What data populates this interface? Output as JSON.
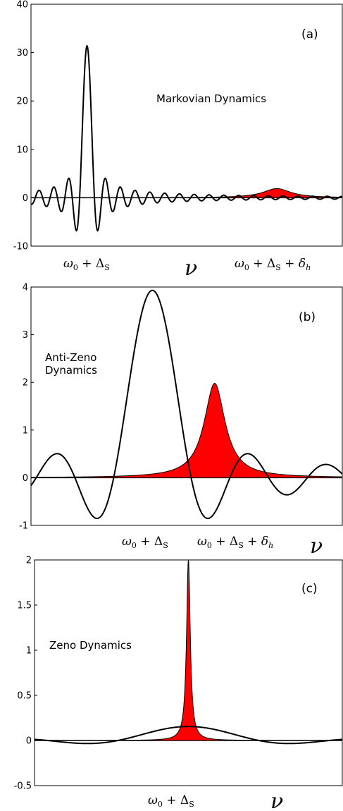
{
  "chart_data": [
    {
      "type": "line",
      "panel_label": "(a)",
      "annotation": "Markovian Dynamics",
      "ylim": [
        -10,
        40
      ],
      "yticks": [
        "-10",
        "0",
        "10",
        "20",
        "30",
        "40"
      ],
      "x_tick_labels": [
        "ω₀ + Δ_S",
        "ω₀ + Δ_S + δ_h"
      ],
      "xlabel": "ν",
      "series": [
        {
          "kind": "sinc",
          "peak": 31.4,
          "first_min": -6.8,
          "center": 0.18
        },
        {
          "kind": "lorentzian",
          "peak": 1.9,
          "center": 0.79,
          "fill": "#ff0000"
        }
      ]
    },
    {
      "type": "line",
      "panel_label": "(b)",
      "annotation": [
        "Anti-Zeno",
        "Dynamics"
      ],
      "ylim": [
        -1,
        4
      ],
      "yticks": [
        "-1",
        "0",
        "1",
        "2",
        "3",
        "4"
      ],
      "x_tick_labels": [
        "ω₀ + Δ_S",
        "ω₀ + Δ_S + δ_h"
      ],
      "xlabel": "ν",
      "series": [
        {
          "kind": "sinc",
          "peak": 3.93,
          "first_min": -0.85,
          "center": 0.39
        },
        {
          "kind": "lorentzian",
          "peak": 1.98,
          "center": 0.59,
          "fill": "#ff0000"
        }
      ]
    },
    {
      "type": "line",
      "panel_label": "(c)",
      "annotation": "Zeno Dynamics",
      "ylim": [
        -0.5,
        2
      ],
      "yticks": [
        "-0.5",
        "0",
        "0.5",
        "1",
        "1.5",
        "2"
      ],
      "x_tick_labels": [
        "ω₀ + Δ_S"
      ],
      "xlabel": "ν",
      "series": [
        {
          "kind": "sinc",
          "peak": 0.155,
          "first_min": -0.033,
          "center": 0.5
        },
        {
          "kind": "lorentzian",
          "peak": 2.0,
          "center": 0.5,
          "fill": "#ff0000"
        }
      ]
    }
  ]
}
